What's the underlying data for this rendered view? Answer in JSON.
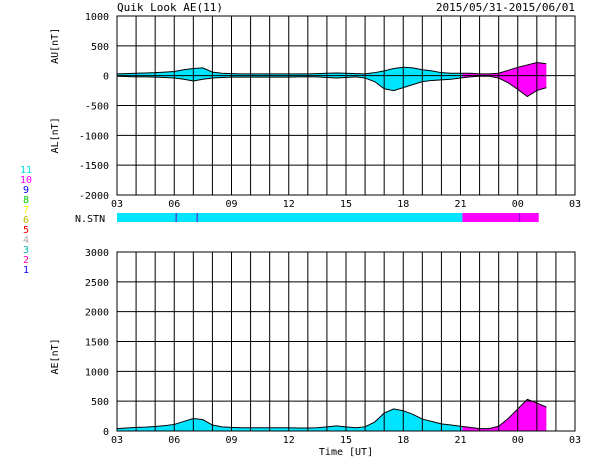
{
  "header": {
    "title": "Quik Look AE(11)",
    "date_range": "2015/05/31-2015/06/01"
  },
  "colors": {
    "fill_cyan": "#00e5ff",
    "fill_magenta": "#ff00ff",
    "grid": "#000000",
    "count_legend": [
      "#0000ff",
      "#ff00aa",
      "#00bbbb",
      "#aaaaaa",
      "#ff0000",
      "#bbbb00",
      "#ffff00",
      "#00cc00",
      "#0000ff",
      "#ff00ff",
      "#00dddd"
    ]
  },
  "station_count_legend": {
    "label": "N.STN",
    "levels": [
      "11",
      "10",
      "9",
      "8",
      "7",
      "6",
      "5",
      "4",
      "3",
      "2",
      "1"
    ]
  },
  "chart_data": [
    {
      "id": "au_al",
      "type": "area",
      "ylabel_top": "AU[nT]",
      "ylabel_bottom": "AL[nT]",
      "ylim": [
        -2000,
        1000
      ],
      "yticks": [
        1000,
        500,
        0,
        -500,
        -1000,
        -1500,
        -2000
      ],
      "xticks": [
        "03",
        "06",
        "09",
        "12",
        "15",
        "18",
        "21",
        "00",
        "03"
      ],
      "x_hours": [
        0,
        0.5,
        1,
        1.5,
        2,
        2.5,
        3,
        3.5,
        4,
        4.5,
        5,
        5.5,
        6,
        6.5,
        7,
        7.5,
        8,
        8.5,
        9,
        9.5,
        10,
        10.5,
        11,
        11.5,
        12,
        12.5,
        13,
        13.5,
        14,
        14.5,
        15,
        15.5,
        16,
        16.5,
        17,
        17.5,
        18,
        18.5,
        19,
        19.5,
        20,
        20.5,
        21,
        21.5,
        22,
        22.5
      ],
      "au": [
        30,
        35,
        40,
        45,
        50,
        60,
        70,
        100,
        120,
        130,
        60,
        40,
        35,
        30,
        30,
        30,
        30,
        30,
        30,
        30,
        30,
        35,
        40,
        45,
        40,
        35,
        30,
        50,
        80,
        120,
        140,
        130,
        100,
        80,
        50,
        40,
        40,
        40,
        30,
        30,
        40,
        90,
        140,
        180,
        220,
        200
      ],
      "al": [
        -10,
        -15,
        -20,
        -20,
        -25,
        -30,
        -40,
        -60,
        -90,
        -60,
        -40,
        -30,
        -25,
        -25,
        -25,
        -25,
        -25,
        -25,
        -25,
        -20,
        -20,
        -20,
        -30,
        -40,
        -30,
        -20,
        -40,
        -100,
        -220,
        -250,
        -200,
        -150,
        -100,
        -80,
        -70,
        -60,
        -40,
        -20,
        -10,
        -10,
        -40,
        -120,
        -230,
        -350,
        -250,
        -200
      ],
      "series": [
        {
          "name": "AU",
          "segment_colors": "cyan_then_magenta"
        },
        {
          "name": "AL",
          "segment_colors": "cyan_then_magenta"
        }
      ],
      "color_change_hour": 18.1,
      "grid": true
    },
    {
      "id": "ae",
      "type": "area",
      "ylabel": "AE[nT]",
      "xlabel": "Time [UT]",
      "ylim": [
        0,
        3000
      ],
      "yticks": [
        3000,
        2500,
        2000,
        1500,
        1000,
        500,
        0
      ],
      "xticks": [
        "03",
        "06",
        "09",
        "12",
        "15",
        "18",
        "21",
        "00",
        "03"
      ],
      "x_hours": [
        0,
        0.5,
        1,
        1.5,
        2,
        2.5,
        3,
        3.5,
        4,
        4.5,
        5,
        5.5,
        6,
        6.5,
        7,
        7.5,
        8,
        8.5,
        9,
        9.5,
        10,
        10.5,
        11,
        11.5,
        12,
        12.5,
        13,
        13.5,
        14,
        14.5,
        15,
        15.5,
        16,
        16.5,
        17,
        17.5,
        18,
        18.5,
        19,
        19.5,
        20,
        20.5,
        21,
        21.5,
        22,
        22.5
      ],
      "values": [
        40,
        50,
        60,
        65,
        75,
        90,
        110,
        160,
        210,
        190,
        100,
        70,
        60,
        55,
        55,
        55,
        55,
        55,
        55,
        50,
        50,
        55,
        70,
        85,
        70,
        55,
        70,
        150,
        300,
        370,
        340,
        280,
        200,
        160,
        120,
        100,
        80,
        60,
        40,
        40,
        80,
        210,
        370,
        530,
        470,
        400
      ],
      "color_change_hour": 18.1,
      "grid": true
    }
  ],
  "station_bar": {
    "segments": [
      {
        "from": 0,
        "to": 18.1,
        "color": "cyan"
      },
      {
        "from": 18.1,
        "to": 22.1,
        "color": "magenta"
      }
    ],
    "ticks_hours": [
      3.1,
      4.2,
      21.1
    ]
  }
}
